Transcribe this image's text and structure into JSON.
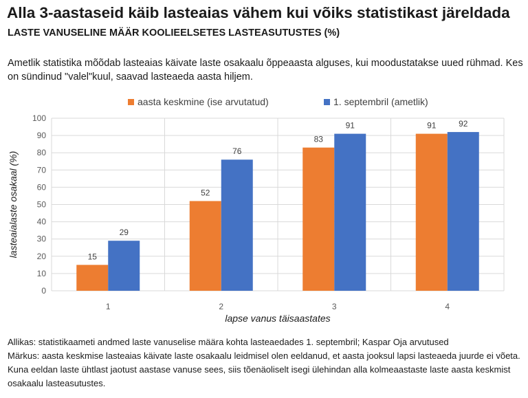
{
  "chart_data": {
    "type": "bar",
    "title": "Alla 3-aastaseid käib lasteaias vähem kui võiks statistikast järeldada",
    "subtitle": "LASTE VANUSELINE MÄÄR KOOLIEELSETES LASTEASUTUSTES (%)",
    "description": "Ametlik statistika mõõdab lasteaias käivate laste osakaalu õppeaasta alguses, kui moodustatakse uued rühmad. Kes on sündinud \"valel\"kuul, saavad lasteaeda aasta hiljem.",
    "categories": [
      "1",
      "2",
      "3",
      "4"
    ],
    "series": [
      {
        "name": "aasta keskmine (ise arvutatud)",
        "color": "#ED7D31",
        "values": [
          15,
          52,
          83,
          91
        ]
      },
      {
        "name": "1. septembril (ametlik)",
        "color": "#4472C4",
        "values": [
          29,
          76,
          91,
          92
        ]
      }
    ],
    "xlabel": "lapse vanus täisaastates",
    "ylabel": "lasteaialaste osakaal (%)",
    "ylim": [
      0,
      100
    ],
    "yticks": [
      0,
      10,
      20,
      30,
      40,
      50,
      60,
      70,
      80,
      90,
      100
    ],
    "grid": true,
    "legend_position": "top"
  },
  "footer": {
    "source": "Allikas: statistikaameti andmed laste vanuselise määra kohta lasteaedades 1. septembril; Kaspar Oja arvutused",
    "note": "Märkus: aasta keskmise lasteaias käivate laste osakaalu leidmisel olen eeldanud, et aasta jooksul lapsi lasteaeda juurde ei võeta. Kuna eeldan laste ühtlast jaotust aastase vanuse sees, siis tõenäoliselt isegi ülehindan alla kolmeaastaste laste aasta keskmist osakaalu lasteasutustes."
  }
}
